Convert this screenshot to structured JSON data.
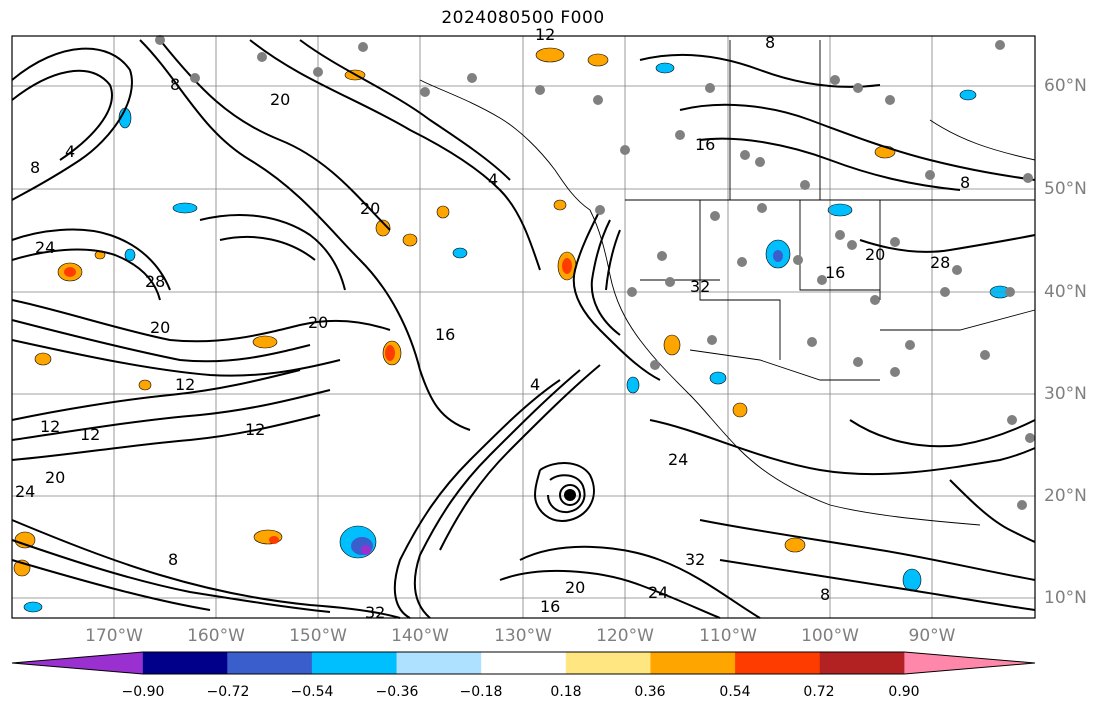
{
  "title": "2024080500 F000",
  "latitude_labels": [
    "60°N",
    "50°N",
    "40°N",
    "30°N",
    "20°N",
    "10°N"
  ],
  "longitude_labels": [
    "170°W",
    "160°W",
    "150°W",
    "140°W",
    "130°W",
    "120°W",
    "110°W",
    "100°W",
    "90°W"
  ],
  "colorbar": {
    "tick_labels": [
      "−0.90",
      "−0.72",
      "−0.54",
      "−0.36",
      "−0.18",
      "0.18",
      "0.36",
      "0.54",
      "0.72",
      "0.90"
    ],
    "colors": [
      "#9b30d0",
      "#00008b",
      "#3a5fcd",
      "#00bfff",
      "#aee0ff",
      "#ffffff",
      "#ffe680",
      "#ffa500",
      "#ff3c00",
      "#b22222",
      "#ff88aa"
    ]
  },
  "contour_labels": [
    "8",
    "12",
    "16",
    "20",
    "24",
    "28",
    "32",
    "4"
  ],
  "map_extent": {
    "lon": [
      -178,
      -78
    ],
    "lat": [
      8,
      65
    ]
  }
}
